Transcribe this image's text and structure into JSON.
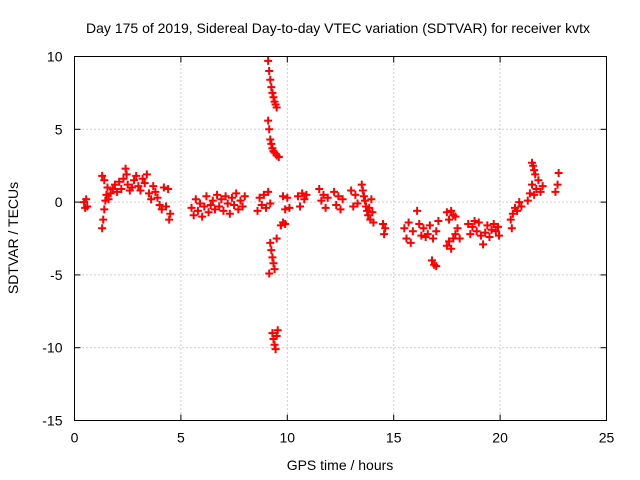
{
  "chart_data": {
    "type": "scatter",
    "title": "Day 175 of 2019, Sidereal Day-to-day VTEC variation (SDTVAR) for receiver kvtx",
    "xlabel": "GPS time / hours",
    "ylabel": "SDTVAR / TECUs",
    "xlim": [
      0,
      25
    ],
    "ylim": [
      -15,
      10
    ],
    "xticks": [
      0,
      5,
      10,
      15,
      20,
      25
    ],
    "yticks": [
      -15,
      -10,
      -5,
      0,
      5,
      10
    ],
    "xtick_labels": [
      "0",
      "5",
      "10",
      "15",
      "20",
      "25"
    ],
    "ytick_labels": [
      "-15",
      "-10",
      "-5",
      "0",
      "5",
      "10"
    ],
    "grid": true,
    "marker": "+",
    "marker_color": "#ff0000",
    "series": [
      {
        "name": "SDTVAR",
        "points": [
          [
            0.45,
            0.0
          ],
          [
            0.5,
            -0.4
          ],
          [
            0.55,
            0.2
          ],
          [
            0.6,
            -0.3
          ],
          [
            1.3,
            -1.8
          ],
          [
            1.35,
            -1.2
          ],
          [
            1.4,
            -0.5
          ],
          [
            1.45,
            0.1
          ],
          [
            1.5,
            0.5
          ],
          [
            1.55,
            1.0
          ],
          [
            1.3,
            1.8
          ],
          [
            1.4,
            1.5
          ],
          [
            1.6,
            0.2
          ],
          [
            1.7,
            0.6
          ],
          [
            1.8,
            0.9
          ],
          [
            1.9,
            1.2
          ],
          [
            2.0,
            0.7
          ],
          [
            2.1,
            1.4
          ],
          [
            2.2,
            0.9
          ],
          [
            2.3,
            1.6
          ],
          [
            2.4,
            2.3
          ],
          [
            2.45,
            1.9
          ],
          [
            2.5,
            1.2
          ],
          [
            2.6,
            0.8
          ],
          [
            2.7,
            1.0
          ],
          [
            2.8,
            1.5
          ],
          [
            2.9,
            1.8
          ],
          [
            3.0,
            1.1
          ],
          [
            3.1,
            0.8
          ],
          [
            3.2,
            1.6
          ],
          [
            3.3,
            1.3
          ],
          [
            3.4,
            1.9
          ],
          [
            3.5,
            0.6
          ],
          [
            3.6,
            0.2
          ],
          [
            3.7,
            1.1
          ],
          [
            3.8,
            0.7
          ],
          [
            3.9,
            0.3
          ],
          [
            4.0,
            -0.2
          ],
          [
            4.1,
            -0.5
          ],
          [
            4.2,
            1.0
          ],
          [
            4.3,
            -0.3
          ],
          [
            4.4,
            0.9
          ],
          [
            4.5,
            -0.8
          ],
          [
            4.45,
            -1.2
          ],
          [
            5.5,
            -0.4
          ],
          [
            5.6,
            -0.9
          ],
          [
            5.7,
            0.2
          ],
          [
            5.8,
            -0.6
          ],
          [
            5.9,
            -0.1
          ],
          [
            6.0,
            -1.0
          ],
          [
            6.1,
            -0.3
          ],
          [
            6.2,
            0.4
          ],
          [
            6.3,
            -0.7
          ],
          [
            6.4,
            -0.2
          ],
          [
            6.5,
            0.1
          ],
          [
            6.6,
            -0.5
          ],
          [
            6.7,
            0.5
          ],
          [
            6.8,
            -0.3
          ],
          [
            6.9,
            0.2
          ],
          [
            7.0,
            -0.6
          ],
          [
            7.1,
            0.4
          ],
          [
            7.2,
            -0.1
          ],
          [
            7.3,
            -0.8
          ],
          [
            7.4,
            0.3
          ],
          [
            7.5,
            -0.2
          ],
          [
            7.6,
            0.6
          ],
          [
            7.7,
            -0.5
          ],
          [
            7.8,
            0.1
          ],
          [
            7.9,
            -0.3
          ],
          [
            8.0,
            0.4
          ],
          [
            8.6,
            -0.6
          ],
          [
            8.7,
            0.3
          ],
          [
            8.8,
            -0.2
          ],
          [
            8.9,
            0.5
          ],
          [
            9.0,
            -0.4
          ],
          [
            9.1,
            0.7
          ],
          [
            9.2,
            -0.1
          ],
          [
            9.1,
            9.7
          ],
          [
            9.15,
            9.0
          ],
          [
            9.2,
            8.4
          ],
          [
            9.25,
            7.9
          ],
          [
            9.3,
            7.5
          ],
          [
            9.35,
            7.2
          ],
          [
            9.4,
            6.9
          ],
          [
            9.45,
            6.7
          ],
          [
            9.5,
            6.5
          ],
          [
            9.1,
            5.6
          ],
          [
            9.15,
            5.0
          ],
          [
            9.2,
            4.3
          ],
          [
            9.25,
            4.0
          ],
          [
            9.3,
            3.7
          ],
          [
            9.35,
            3.5
          ],
          [
            9.4,
            3.4
          ],
          [
            9.5,
            3.2
          ],
          [
            9.6,
            3.1
          ],
          [
            9.2,
            -2.8
          ],
          [
            9.25,
            -3.3
          ],
          [
            9.3,
            -3.8
          ],
          [
            9.35,
            -4.2
          ],
          [
            9.4,
            -4.6
          ],
          [
            9.15,
            -4.9
          ],
          [
            9.5,
            -2.5
          ],
          [
            9.3,
            -9.0
          ],
          [
            9.35,
            -9.4
          ],
          [
            9.4,
            -9.8
          ],
          [
            9.45,
            -10.1
          ],
          [
            9.5,
            -9.2
          ],
          [
            9.55,
            -8.8
          ],
          [
            9.7,
            -1.6
          ],
          [
            9.8,
            -1.4
          ],
          [
            9.9,
            -1.5
          ],
          [
            9.8,
            0.4
          ],
          [
            9.9,
            -0.5
          ],
          [
            10.0,
            0.3
          ],
          [
            10.1,
            -0.4
          ],
          [
            10.5,
            0.4
          ],
          [
            10.6,
            -0.3
          ],
          [
            10.7,
            0.6
          ],
          [
            10.8,
            0.2
          ],
          [
            10.9,
            0.5
          ],
          [
            11.5,
            0.9
          ],
          [
            11.6,
            0.1
          ],
          [
            11.7,
            0.5
          ],
          [
            11.8,
            -0.4
          ],
          [
            11.9,
            0.3
          ],
          [
            12.2,
            0.7
          ],
          [
            12.3,
            -0.2
          ],
          [
            12.4,
            0.4
          ],
          [
            12.5,
            -0.5
          ],
          [
            12.6,
            0.2
          ],
          [
            13.0,
            0.8
          ],
          [
            13.1,
            -0.3
          ],
          [
            13.2,
            0.5
          ],
          [
            13.3,
            -0.1
          ],
          [
            13.5,
            1.2
          ],
          [
            13.55,
            0.8
          ],
          [
            13.6,
            0.4
          ],
          [
            13.65,
            0.1
          ],
          [
            13.7,
            -0.3
          ],
          [
            13.75,
            -0.6
          ],
          [
            13.8,
            -0.9
          ],
          [
            13.85,
            -0.4
          ],
          [
            13.9,
            -1.2
          ],
          [
            13.95,
            0.2
          ],
          [
            14.0,
            -0.7
          ],
          [
            14.05,
            -1.4
          ],
          [
            14.5,
            -1.5
          ],
          [
            14.55,
            -2.2
          ],
          [
            14.6,
            -1.8
          ],
          [
            15.5,
            -1.8
          ],
          [
            15.6,
            -2.5
          ],
          [
            15.7,
            -1.4
          ],
          [
            15.8,
            -2.8
          ],
          [
            15.9,
            -2.0
          ],
          [
            16.1,
            -0.6
          ],
          [
            16.2,
            -1.5
          ],
          [
            16.3,
            -2.3
          ],
          [
            16.4,
            -1.8
          ],
          [
            16.5,
            -2.4
          ],
          [
            16.8,
            -4.0
          ],
          [
            16.9,
            -4.3
          ],
          [
            17.0,
            -4.4
          ],
          [
            16.7,
            -1.6
          ],
          [
            16.85,
            -2.5
          ],
          [
            17.0,
            -2.0
          ],
          [
            16.6,
            -2.2
          ],
          [
            17.1,
            -1.3
          ],
          [
            17.5,
            -0.7
          ],
          [
            17.6,
            -1.2
          ],
          [
            17.7,
            -0.6
          ],
          [
            17.8,
            -0.9
          ],
          [
            17.9,
            -1.0
          ],
          [
            17.5,
            -3.0
          ],
          [
            17.6,
            -2.7
          ],
          [
            17.7,
            -3.2
          ],
          [
            17.8,
            -2.5
          ],
          [
            17.9,
            -2.2
          ],
          [
            18.0,
            -1.8
          ],
          [
            18.1,
            -2.5
          ],
          [
            18.5,
            -1.5
          ],
          [
            18.6,
            -2.2
          ],
          [
            18.7,
            -1.7
          ],
          [
            18.8,
            -1.3
          ],
          [
            18.9,
            -2.0
          ],
          [
            19.0,
            -1.4
          ],
          [
            19.1,
            -2.3
          ],
          [
            19.2,
            -2.9
          ],
          [
            19.3,
            -2.1
          ],
          [
            19.4,
            -1.6
          ],
          [
            19.5,
            -2.4
          ],
          [
            19.6,
            -1.9
          ],
          [
            19.7,
            -1.5
          ],
          [
            19.8,
            -2.0
          ],
          [
            19.9,
            -1.7
          ],
          [
            19.95,
            -2.3
          ],
          [
            20.5,
            -1.2
          ],
          [
            20.55,
            -1.8
          ],
          [
            20.6,
            -0.8
          ],
          [
            20.7,
            -0.4
          ],
          [
            20.8,
            -0.6
          ],
          [
            20.9,
            0.0
          ],
          [
            21.0,
            -0.3
          ],
          [
            21.3,
            0.1
          ],
          [
            21.4,
            0.6
          ],
          [
            21.5,
            1.2
          ],
          [
            21.6,
            0.5
          ],
          [
            21.7,
            0.9
          ],
          [
            21.8,
            1.5
          ],
          [
            21.9,
            0.7
          ],
          [
            22.0,
            1.1
          ],
          [
            21.5,
            2.7
          ],
          [
            21.55,
            2.5
          ],
          [
            21.6,
            2.2
          ],
          [
            21.65,
            1.9
          ],
          [
            22.6,
            0.7
          ],
          [
            22.7,
            1.2
          ],
          [
            22.75,
            2.0
          ]
        ]
      }
    ]
  }
}
